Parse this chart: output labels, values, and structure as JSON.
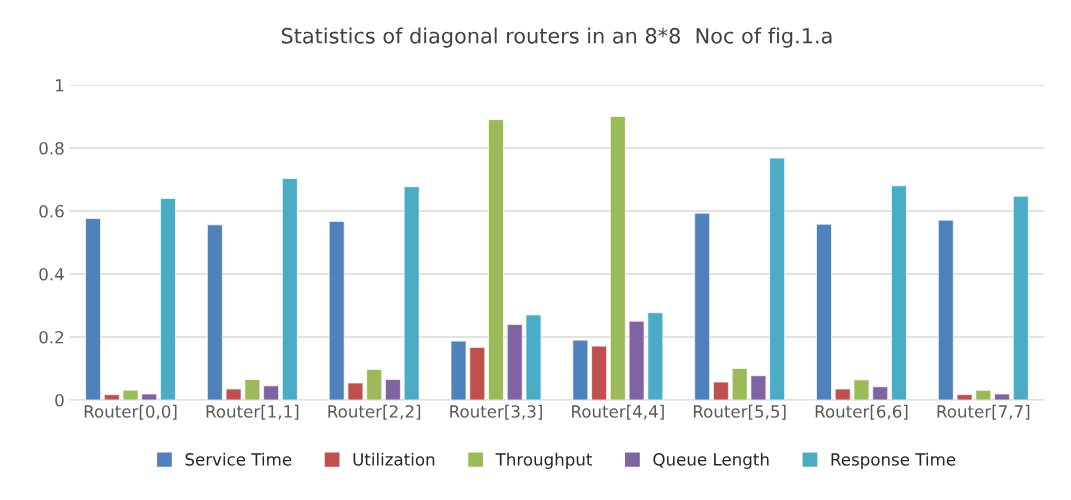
{
  "chart_data": {
    "type": "bar",
    "title": "Statistics of diagonal routers in an 8*8  Noc of fig.1.a",
    "categories": [
      "Router[0,0]",
      "Router[1,1]",
      "Router[2,2]",
      "Router[3,3]",
      "Router[4,4]",
      "Router[5,5]",
      "Router[6,6]",
      "Router[7,7]"
    ],
    "series": [
      {
        "name": "Service Time",
        "color": "#4f81bd",
        "values": [
          0.576,
          0.556,
          0.567,
          0.187,
          0.19,
          0.593,
          0.558,
          0.571
        ]
      },
      {
        "name": "Utilization",
        "color": "#c0504d",
        "values": [
          0.017,
          0.035,
          0.054,
          0.167,
          0.171,
          0.057,
          0.035,
          0.017
        ]
      },
      {
        "name": "Throughput",
        "color": "#9bbb59",
        "values": [
          0.031,
          0.065,
          0.097,
          0.89,
          0.9,
          0.1,
          0.064,
          0.031
        ]
      },
      {
        "name": "Queue Length",
        "color": "#8064a2",
        "values": [
          0.019,
          0.045,
          0.065,
          0.24,
          0.25,
          0.077,
          0.042,
          0.019
        ]
      },
      {
        "name": "Response Time",
        "color": "#4bacc6",
        "values": [
          0.64,
          0.703,
          0.677,
          0.27,
          0.277,
          0.768,
          0.68,
          0.647
        ]
      }
    ],
    "ylim": [
      0,
      1
    ],
    "yticks": [
      0,
      0.2,
      0.4,
      0.6,
      0.8,
      1
    ],
    "grid": "y",
    "legend": "bottom"
  }
}
